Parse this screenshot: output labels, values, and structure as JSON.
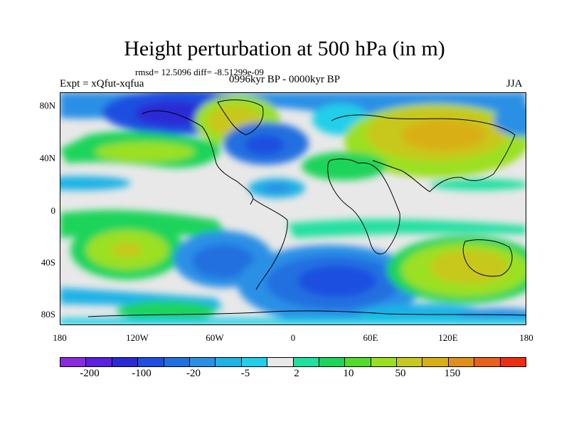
{
  "title": "Height perturbation at 500 hPa (in m)",
  "stats": "rmsd= 12.5096 diff= -8.51299e-09",
  "expt": "Expt = xQfut-xqfua",
  "period": "0996kyr BP - 0000kyr BP",
  "season": "JJA",
  "lat_labels": [
    "80N",
    "40N",
    "0",
    "40S",
    "80S"
  ],
  "lon_labels": [
    "180",
    "120W",
    "60W",
    "0",
    "60E",
    "120E",
    "180"
  ],
  "colorbar": {
    "colors": [
      "#8a2be2",
      "#5b1fe0",
      "#2b2bd6",
      "#1f4fe0",
      "#2070e0",
      "#2a90e6",
      "#1fb2e6",
      "#20cfe8",
      "#e8e8e8",
      "#20e0a0",
      "#1ed45a",
      "#50dc28",
      "#9be020",
      "#c8c81e",
      "#d8b014",
      "#e0901a",
      "#e8601a",
      "#ee2c10"
    ],
    "labels": [
      "-200",
      "-100",
      "-20",
      "-5",
      "2",
      "10",
      "50",
      "150"
    ]
  }
}
